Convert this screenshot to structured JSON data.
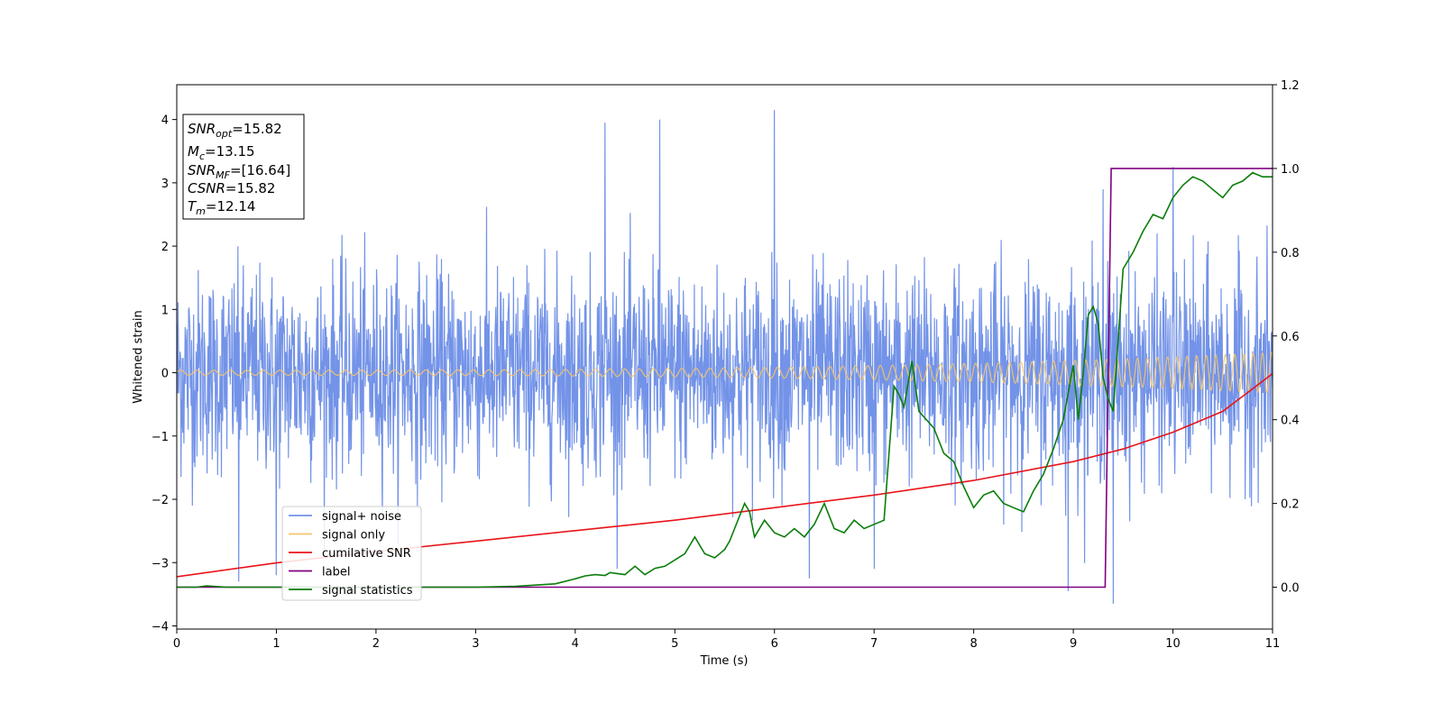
{
  "chart_data": {
    "type": "line",
    "xlabel": "Time (s)",
    "ylabel": "Whitened strain",
    "xlim": [
      0,
      11
    ],
    "ylim_left": [
      -4.05,
      4.55
    ],
    "ylim_right": [
      -0.1,
      1.2
    ],
    "x_ticks": [
      0,
      1,
      2,
      3,
      4,
      5,
      6,
      7,
      8,
      9,
      10,
      11
    ],
    "y_ticks_left": [
      -4,
      -3,
      -2,
      -1,
      0,
      1,
      2,
      3,
      4
    ],
    "y_ticks_right": [
      0.0,
      0.2,
      0.4,
      0.6,
      0.8,
      1.0,
      1.2
    ],
    "grid": false,
    "legend_position": "lower-left",
    "stats_box": [
      {
        "base": "SNR",
        "sub": "opt",
        "value": "=15.82"
      },
      {
        "base": "M",
        "sub": "c",
        "value": "=13.15"
      },
      {
        "base": "SNR",
        "sub": "MF",
        "value": "=[16.64]"
      },
      {
        "base": "CSNR",
        "sub": "",
        "value": "=15.82"
      },
      {
        "base": "T",
        "sub": "m",
        "value": "=12.14"
      }
    ],
    "series": [
      {
        "name": "signal+ noise",
        "color": "#7393e8",
        "axis": "left",
        "description_values": "whitened noise, roughly uniform amplitude about 1.6 with spikes to about 4.2 near t=6.0",
        "amplitude": 1.6,
        "spikes": [
          [
            0.62,
            -3.3
          ],
          [
            1.0,
            -3.2
          ],
          [
            4.85,
            4.0
          ],
          [
            4.3,
            3.95
          ],
          [
            6.0,
            4.15
          ],
          [
            8.95,
            -3.45
          ],
          [
            9.4,
            -3.65
          ],
          [
            10.0,
            -3.4
          ],
          [
            10.0,
            3.25
          ],
          [
            9.3,
            2.9
          ],
          [
            7.0,
            -3.1
          ],
          [
            6.35,
            -3.25
          ]
        ]
      },
      {
        "name": "signal only",
        "color": "#f5c56b",
        "axis": "left",
        "amplitude_start": 0.04,
        "amplitude_end": 0.32,
        "freq_start": 6,
        "freq_end": 11
      },
      {
        "name": "cumilative SNR",
        "color": "#e8141a",
        "axis": "right",
        "x": [
          0,
          1,
          2,
          3,
          4,
          5,
          6,
          7,
          8,
          9,
          9.5,
          10,
          10.5,
          11
        ],
        "y": [
          0.025,
          0.058,
          0.085,
          0.11,
          0.135,
          0.16,
          0.19,
          0.22,
          0.255,
          0.3,
          0.33,
          0.37,
          0.42,
          0.51
        ]
      },
      {
        "name": "label",
        "color": "#800080",
        "axis": "right",
        "x": [
          0,
          9.32,
          9.38,
          11
        ],
        "y": [
          0.0,
          0.0,
          1.0,
          1.0
        ]
      },
      {
        "name": "signal statistics",
        "color": "#0a7d0a",
        "axis": "right",
        "x": [
          0,
          0.2,
          0.3,
          0.5,
          1.0,
          2.0,
          3.0,
          3.4,
          3.6,
          3.8,
          4.0,
          4.1,
          4.2,
          4.3,
          4.35,
          4.5,
          4.6,
          4.7,
          4.8,
          4.9,
          5.0,
          5.1,
          5.2,
          5.3,
          5.4,
          5.5,
          5.55,
          5.6,
          5.7,
          5.75,
          5.8,
          5.9,
          6.0,
          6.1,
          6.2,
          6.3,
          6.4,
          6.5,
          6.6,
          6.7,
          6.8,
          6.9,
          7.0,
          7.1,
          7.2,
          7.25,
          7.3,
          7.38,
          7.45,
          7.6,
          7.7,
          7.8,
          7.9,
          8.0,
          8.1,
          8.2,
          8.3,
          8.4,
          8.5,
          8.6,
          8.7,
          8.8,
          8.9,
          9.0,
          9.05,
          9.1,
          9.15,
          9.2,
          9.25,
          9.3,
          9.35,
          9.4,
          9.5,
          9.6,
          9.7,
          9.8,
          9.9,
          10.0,
          10.1,
          10.2,
          10.3,
          10.4,
          10.5,
          10.6,
          10.7,
          10.8,
          10.9,
          11.0
        ],
        "y": [
          0.0,
          0.0,
          0.003,
          0.0,
          0.0,
          0.0,
          0.0,
          0.002,
          0.005,
          0.008,
          0.02,
          0.027,
          0.03,
          0.028,
          0.035,
          0.03,
          0.05,
          0.03,
          0.045,
          0.05,
          0.065,
          0.08,
          0.12,
          0.08,
          0.07,
          0.09,
          0.11,
          0.14,
          0.2,
          0.18,
          0.12,
          0.16,
          0.13,
          0.12,
          0.14,
          0.12,
          0.15,
          0.2,
          0.14,
          0.13,
          0.16,
          0.14,
          0.15,
          0.16,
          0.48,
          0.46,
          0.43,
          0.54,
          0.42,
          0.38,
          0.32,
          0.3,
          0.24,
          0.19,
          0.22,
          0.23,
          0.2,
          0.19,
          0.18,
          0.23,
          0.27,
          0.33,
          0.4,
          0.53,
          0.4,
          0.51,
          0.65,
          0.67,
          0.63,
          0.5,
          0.45,
          0.42,
          0.76,
          0.8,
          0.85,
          0.89,
          0.88,
          0.93,
          0.96,
          0.98,
          0.97,
          0.95,
          0.93,
          0.96,
          0.97,
          0.99,
          0.98,
          0.98
        ]
      }
    ]
  }
}
